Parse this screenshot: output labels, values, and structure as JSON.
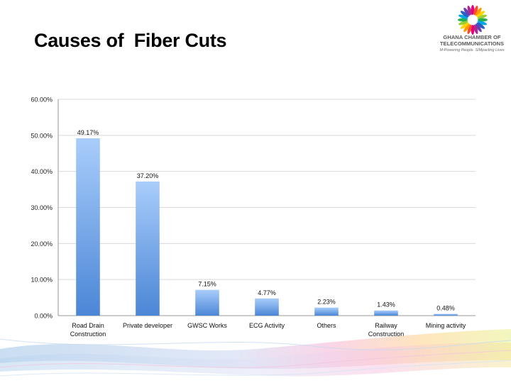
{
  "slide": {
    "title": "Causes of  Fiber Cuts"
  },
  "logo": {
    "name_line1": "GHANA CHAMBER OF",
    "name_line2": "TELECOMMUNICATIONS",
    "tagline": "M-Powering People. SIMpacting Lives",
    "ring_colors": [
      "#e4007c",
      "#ff4b2b",
      "#ff9900",
      "#ffd400",
      "#9acd32",
      "#22b14c",
      "#00a7e1",
      "#2b5ec9",
      "#6a3fb5",
      "#b0278f"
    ]
  },
  "chart_data": {
    "type": "bar",
    "categories": [
      "Road Drain Construction",
      "Private developer",
      "GWSC Works",
      "ECG Activity",
      "Others",
      "Railway Construction",
      "Mining activity"
    ],
    "values": [
      49.17,
      37.2,
      7.15,
      4.77,
      2.23,
      1.43,
      0.48
    ],
    "data_labels": [
      "49.17%",
      "37.20%",
      "7.15%",
      "4.77%",
      "2.23%",
      "1.43%",
      "0.48%"
    ],
    "y_tick_labels": [
      "0.00%",
      "10.00%",
      "20.00%",
      "30.00%",
      "40.00%",
      "50.00%",
      "60.00%"
    ],
    "ylim": [
      0,
      60
    ],
    "y_tick_step": 10,
    "grid": true,
    "legend": "none",
    "bar_color_top": "#a9cdfb",
    "bar_color_bottom": "#4b86d6",
    "xlabel": "",
    "ylabel": ""
  }
}
